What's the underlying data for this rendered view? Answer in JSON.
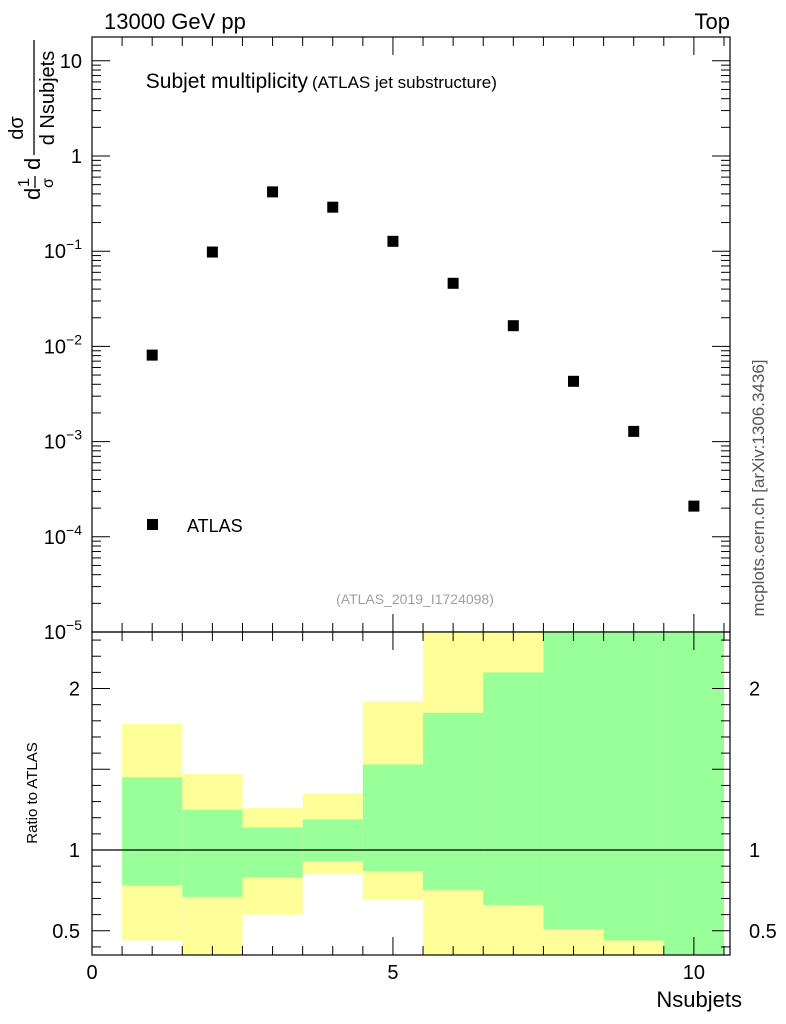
{
  "header": {
    "energy_label": "13000 GeV pp",
    "process_label": "Top"
  },
  "side_label": "mcplots.cern.ch [arXiv:1306.3436]",
  "colors": {
    "band_inner": "#99ff99",
    "band_outer": "#ffff99",
    "marker": "#000000",
    "axis": "#000000",
    "analysis_label": "#a0a0a0"
  },
  "chart_data": [
    {
      "type": "scatter",
      "title": "Subjet multiplicity",
      "subtitle": "(ATLAS jet substructure)",
      "analysis_label": "(ATLAS_2019_I1724098)",
      "ylabel_parts": [
        "d",
        "1",
        "σ",
        "d",
        "dσ",
        "d Nsubjets"
      ],
      "xlim": [
        0,
        10.6
      ],
      "ylim_log10": [
        -5,
        1.25
      ],
      "yscale": "log",
      "y_ticks": [
        {
          "exp": 1,
          "mantissa": "10",
          "sup": ""
        },
        {
          "exp": 0,
          "mantissa": "1",
          "sup": ""
        },
        {
          "exp": -1,
          "mantissa": "10",
          "sup": "−1"
        },
        {
          "exp": -2,
          "mantissa": "10",
          "sup": "−2"
        },
        {
          "exp": -3,
          "mantissa": "10",
          "sup": "−3"
        },
        {
          "exp": -4,
          "mantissa": "10",
          "sup": "−4"
        },
        {
          "exp": -5,
          "mantissa": "10",
          "sup": "−5"
        }
      ],
      "series": [
        {
          "name": "ATLAS",
          "x": [
            1,
            2,
            3,
            4,
            5,
            6,
            7,
            8,
            9,
            10
          ],
          "y": [
            0.0081,
            0.098,
            0.42,
            0.29,
            0.127,
            0.046,
            0.0165,
            0.0043,
            0.00128,
            0.00021
          ]
        }
      ],
      "legend": {
        "entries": [
          "ATLAS"
        ],
        "position": "bottom-left"
      }
    },
    {
      "type": "area",
      "title": "",
      "ylabel": "Ratio to ATLAS",
      "xlabel": "Nsubjets",
      "xlim": [
        0,
        10.6
      ],
      "ylim": [
        0.35,
        2.35
      ],
      "x_ticks": [
        {
          "value": 0,
          "label": "0"
        },
        {
          "value": 5,
          "label": "5"
        },
        {
          "value": 10,
          "label": "10"
        }
      ],
      "y_ticks": [
        {
          "value": 0.5,
          "label": "0.5"
        },
        {
          "value": 1,
          "label": "1"
        },
        {
          "value": 2,
          "label": "2"
        }
      ],
      "reference_line": 1,
      "bin_edges": [
        0.5,
        1.5,
        2.5,
        3.5,
        4.5,
        5.5,
        6.5,
        7.5,
        8.5,
        9.5,
        10.5
      ],
      "outer_band": {
        "name": "outer uncertainty",
        "low": [
          0.44,
          0.35,
          0.6,
          0.85,
          0.69,
          0.35,
          0.35,
          0.35,
          0.35,
          0.35
        ],
        "high": [
          1.78,
          1.47,
          1.26,
          1.35,
          1.92,
          2.35,
          2.35,
          2.35,
          2.35,
          2.35
        ]
      },
      "inner_band": {
        "name": "inner uncertainty",
        "low": [
          0.78,
          0.71,
          0.83,
          0.93,
          0.87,
          0.75,
          0.66,
          0.51,
          0.44,
          0.35
        ],
        "high": [
          1.45,
          1.25,
          1.14,
          1.19,
          1.53,
          1.85,
          2.1,
          2.35,
          2.35,
          2.35
        ]
      }
    }
  ]
}
